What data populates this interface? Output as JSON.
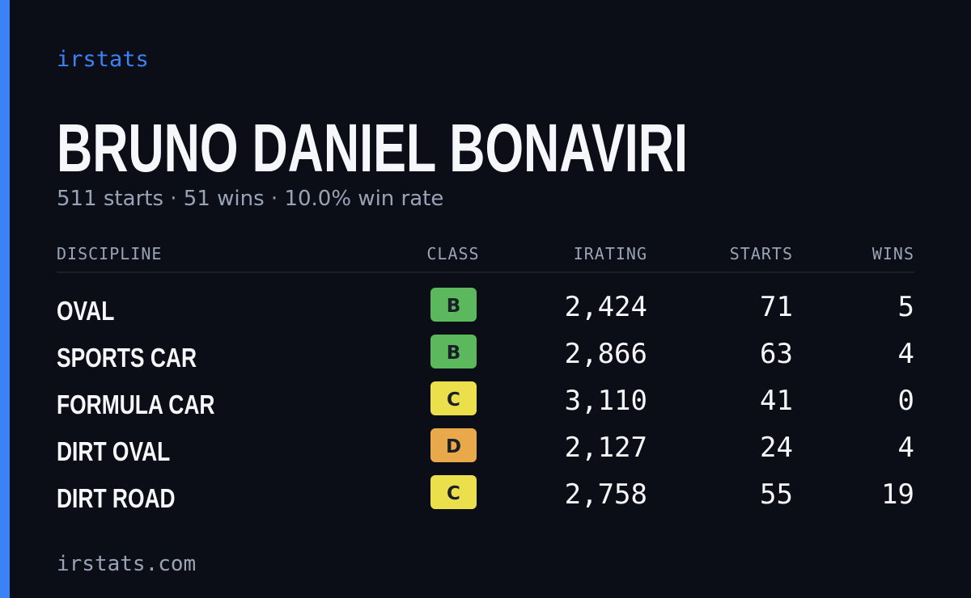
{
  "brand": "irstats",
  "name": "BRUNO DANIEL BONAVIRI",
  "summary": "511 starts · 51 wins · 10.0% win rate",
  "table": {
    "headers": [
      "DISCIPLINE",
      "CLASS",
      "IRATING",
      "STARTS",
      "WINS"
    ],
    "rows": [
      {
        "discipline": "OVAL",
        "class": "B",
        "class_color": "#5cb85c",
        "irating": "2,424",
        "starts": "71",
        "wins": "5"
      },
      {
        "discipline": "SPORTS CAR",
        "class": "B",
        "class_color": "#5cb85c",
        "irating": "2,866",
        "starts": "63",
        "wins": "4"
      },
      {
        "discipline": "FORMULA CAR",
        "class": "C",
        "class_color": "#ebe04c",
        "irating": "3,110",
        "starts": "41",
        "wins": "0"
      },
      {
        "discipline": "DIRT OVAL",
        "class": "D",
        "class_color": "#e9a94b",
        "irating": "2,127",
        "starts": "24",
        "wins": "4"
      },
      {
        "discipline": "DIRT ROAD",
        "class": "C",
        "class_color": "#ebe04c",
        "irating": "2,758",
        "starts": "55",
        "wins": "19"
      }
    ]
  },
  "footer": "irstats.com"
}
